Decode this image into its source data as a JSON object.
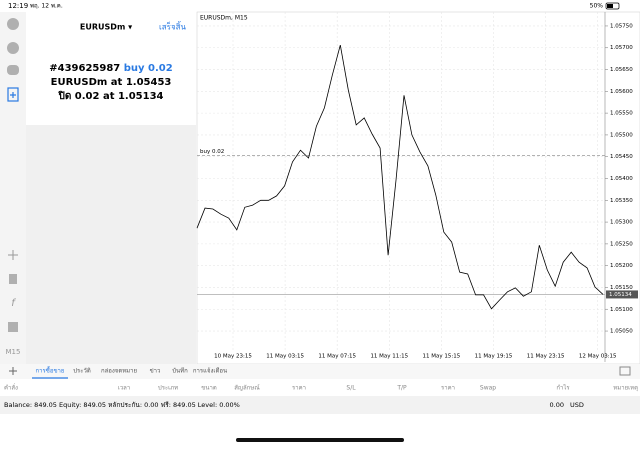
{
  "status_bar": {
    "time": "12:19",
    "date": "พฤ. 12 พ.ค.",
    "battery": "50%"
  },
  "side_toolbar": {
    "timeframe": "M15"
  },
  "order_panel": {
    "symbol": "EURUSDm ▾",
    "done": "เสร็จสิ้น",
    "ticket": "#439625987",
    "side": "buy 0.02",
    "open_text": "EURUSDm at",
    "open_price": "1.05453",
    "close_text": "ปิด 0.02 at",
    "close_price": "1.05134"
  },
  "chart": {
    "type": "line",
    "title": "EURUSDm, M15",
    "color": "#000000",
    "values": [
      1.05286,
      1.05332,
      1.0533,
      1.05318,
      1.05309,
      1.05282,
      1.05334,
      1.05339,
      1.0535,
      1.0535,
      1.0536,
      1.05383,
      1.05438,
      1.05465,
      1.05447,
      1.0552,
      1.05562,
      1.05637,
      1.05706,
      1.05603,
      1.05523,
      1.05539,
      1.05502,
      1.0547,
      1.05224,
      1.05396,
      1.05591,
      1.055,
      1.05461,
      1.05429,
      1.05362,
      1.05277,
      1.05254,
      1.05185,
      1.05181,
      1.05133,
      1.05133,
      1.05101,
      1.05121,
      1.0514,
      1.05149,
      1.0513,
      1.0514,
      1.05247,
      1.0519,
      1.05153,
      1.05208,
      1.05231,
      1.05208,
      1.05195,
      1.05151,
      1.05134
    ],
    "ylim": [
      1.04979,
      1.05782
    ],
    "yticks": [
      {
        "value": 1.0505,
        "label": "1.05050"
      },
      {
        "value": 1.051,
        "label": "1.05100"
      },
      {
        "value": 1.0515,
        "label": "1.05150"
      },
      {
        "value": 1.052,
        "label": "1.05200"
      },
      {
        "value": 1.0525,
        "label": "1.05250"
      },
      {
        "value": 1.053,
        "label": "1.05300"
      },
      {
        "value": 1.0535,
        "label": "1.05350"
      },
      {
        "value": 1.054,
        "label": "1.05400"
      },
      {
        "value": 1.0545,
        "label": "1.05450"
      },
      {
        "value": 1.055,
        "label": "1.05500"
      },
      {
        "value": 1.0555,
        "label": "1.05550"
      },
      {
        "value": 1.056,
        "label": "1.05600"
      },
      {
        "value": 1.0565,
        "label": "1.05650"
      },
      {
        "value": 1.057,
        "label": "1.05700"
      },
      {
        "value": 1.0575,
        "label": "1.05750"
      }
    ],
    "x_labels": [
      "10 May 23:15",
      "11 May 03:15",
      "11 May 07:15",
      "11 May 11:15",
      "11 May 15:15",
      "11 May 19:15",
      "11 May 23:15",
      "12 May 03:15"
    ],
    "order_line": {
      "value": 1.05453,
      "label": "buy 0.02"
    },
    "bid_line": 1.05134,
    "grid": true
  },
  "tabs": [
    "การซื้อขาย",
    "ประวัติ",
    "กล่องจดหมาย",
    "ข่าว",
    "บันทึก",
    "การแจ้งเตือน"
  ],
  "table": {
    "headers": [
      "คำสั่ง",
      "เวลา",
      "ประเภท",
      "ขนาด",
      "สัญลักษณ์",
      "ราคา",
      "S/L",
      "T/P",
      "ราคา",
      "Swap",
      "กำไร",
      "หมายเหตุ"
    ],
    "summary": "Balance: 849.05 Equity: 849.05 หลักประกัน: 0.00 ฟรี: 849.05 Level: 0.00%",
    "profit": "0.00",
    "currency": "USD"
  }
}
